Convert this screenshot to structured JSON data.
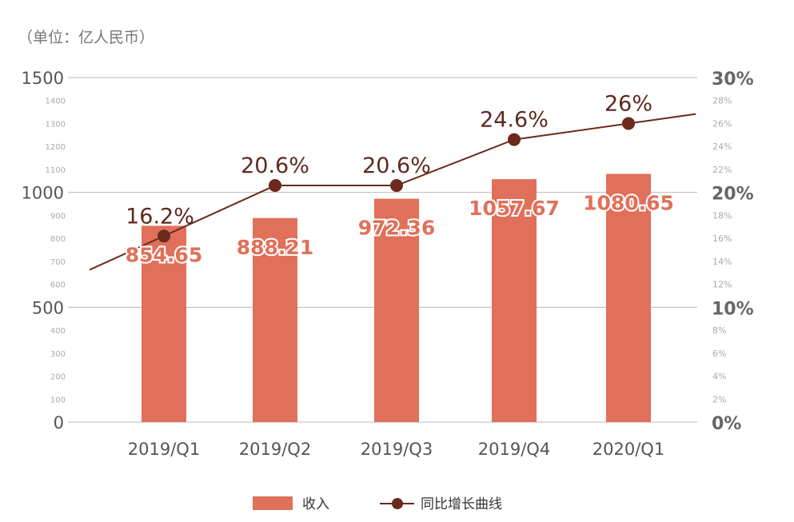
{
  "chart_data": {
    "type": "bar",
    "unit_label": "（单位：亿人民币）",
    "categories": [
      "2019/Q1",
      "2019/Q2",
      "2019/Q3",
      "2019/Q4",
      "2020/Q1"
    ],
    "series": [
      {
        "name": "收入",
        "kind": "bar",
        "axis": "left",
        "values": [
          854.65,
          888.21,
          972.36,
          1057.67,
          1080.65
        ],
        "value_labels": [
          "854.65",
          "888.21",
          "972.36",
          "1057.67",
          "1080.65"
        ]
      },
      {
        "name": "同比增长曲线",
        "kind": "line",
        "axis": "right",
        "values": [
          16.2,
          20.6,
          20.6,
          24.6,
          26
        ],
        "value_labels": [
          "16.2%",
          "20.6%",
          "20.6%",
          "24.6%",
          "26%"
        ]
      }
    ],
    "y_left": {
      "lim": [
        0,
        1500
      ],
      "ticks_major": [
        0,
        500,
        1000,
        1500
      ],
      "ticks_minor": [
        100,
        200,
        300,
        400,
        600,
        700,
        800,
        900,
        1100,
        1200,
        1300,
        1400
      ]
    },
    "y_right": {
      "lim": [
        0,
        30
      ],
      "ticks_major": [
        0,
        10,
        20,
        30
      ],
      "ticks_minor": [
        2,
        4,
        6,
        8,
        12,
        14,
        16,
        18,
        22,
        24,
        26,
        28
      ],
      "suffix": "%"
    },
    "gridlines": "horizontal at major ticks",
    "legend": {
      "position": "bottom-center",
      "items": [
        {
          "label": "收入",
          "marker": "rect"
        },
        {
          "label": "同比增长曲线",
          "marker": "line-dot"
        }
      ]
    },
    "colors": {
      "bar": "#E0705A",
      "line": "#6B2A1C",
      "grid": "#B8B8B8",
      "axis_text": "#555555",
      "axis_text_major_right": "#666666",
      "minor_text": "#AAAAAA",
      "bar_label": "#E0705A",
      "line_label": "#5C2A20"
    }
  }
}
